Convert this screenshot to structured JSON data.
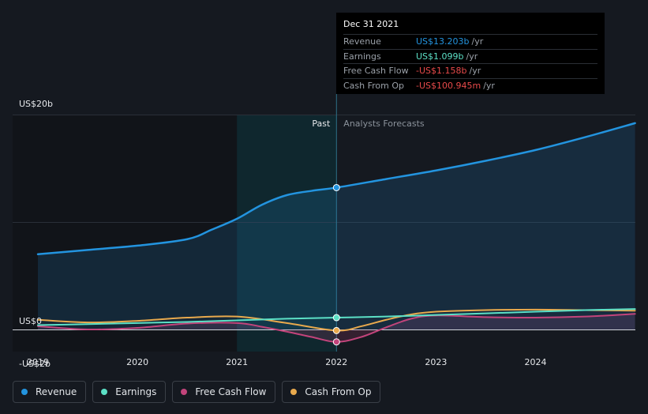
{
  "chart_data": {
    "type": "line",
    "title": "",
    "xlabel": "",
    "ylabel": "",
    "y_axis_labels": [
      {
        "label": "US$20b",
        "value": 20
      },
      {
        "label": "US$0",
        "value": 0
      },
      {
        "label": "-US$2b",
        "value": -2
      }
    ],
    "x_ticks": [
      {
        "label": "2019",
        "value": 2019.0
      },
      {
        "label": "2020",
        "value": 2020.0
      },
      {
        "label": "2021",
        "value": 2021.0
      },
      {
        "label": "2022",
        "value": 2022.0
      },
      {
        "label": "2023",
        "value": 2023.0
      },
      {
        "label": "2024",
        "value": 2024.0
      }
    ],
    "xlim": [
      2018.9,
      2025.0
    ],
    "ylim": [
      -2.2,
      20.5
    ],
    "past_label": "Past",
    "forecast_label": "Analysts Forecasts",
    "divider_x": 2022.0,
    "highlight_range": [
      2021.0,
      2022.0
    ],
    "series": [
      {
        "name": "Revenue",
        "color": "#2394df",
        "filled": true,
        "points": [
          [
            2019.0,
            7.0
          ],
          [
            2019.5,
            7.4
          ],
          [
            2020.0,
            7.8
          ],
          [
            2020.5,
            8.4
          ],
          [
            2020.75,
            9.3
          ],
          [
            2021.0,
            10.3
          ],
          [
            2021.25,
            11.6
          ],
          [
            2021.5,
            12.5
          ],
          [
            2021.75,
            12.9
          ],
          [
            2022.0,
            13.203
          ],
          [
            2022.5,
            14.0
          ],
          [
            2023.0,
            14.8
          ],
          [
            2023.5,
            15.7
          ],
          [
            2024.0,
            16.7
          ],
          [
            2024.5,
            17.9
          ],
          [
            2025.0,
            19.2
          ]
        ]
      },
      {
        "name": "Earnings",
        "color": "#5ce0c6",
        "filled": false,
        "points": [
          [
            2019.0,
            0.4
          ],
          [
            2019.5,
            0.5
          ],
          [
            2020.0,
            0.6
          ],
          [
            2020.5,
            0.7
          ],
          [
            2021.0,
            0.85
          ],
          [
            2021.5,
            1.0
          ],
          [
            2022.0,
            1.099
          ],
          [
            2022.5,
            1.2
          ],
          [
            2023.0,
            1.35
          ],
          [
            2023.5,
            1.5
          ],
          [
            2024.0,
            1.65
          ],
          [
            2024.5,
            1.8
          ],
          [
            2025.0,
            1.9
          ]
        ]
      },
      {
        "name": "Free Cash Flow",
        "color": "#c2447b",
        "filled": true,
        "points": [
          [
            2019.0,
            0.3
          ],
          [
            2019.5,
            0.0
          ],
          [
            2020.0,
            0.15
          ],
          [
            2020.5,
            0.55
          ],
          [
            2021.0,
            0.6
          ],
          [
            2021.25,
            0.25
          ],
          [
            2021.5,
            -0.2
          ],
          [
            2021.75,
            -0.7
          ],
          [
            2022.0,
            -1.158
          ],
          [
            2022.25,
            -0.7
          ],
          [
            2022.5,
            0.2
          ],
          [
            2022.75,
            1.0
          ],
          [
            2023.0,
            1.3
          ],
          [
            2023.5,
            1.15
          ],
          [
            2024.0,
            1.1
          ],
          [
            2024.5,
            1.2
          ],
          [
            2025.0,
            1.45
          ]
        ]
      },
      {
        "name": "Cash From Op",
        "color": "#e8a94d",
        "filled": false,
        "points": [
          [
            2019.0,
            0.9
          ],
          [
            2019.5,
            0.65
          ],
          [
            2020.0,
            0.8
          ],
          [
            2020.5,
            1.1
          ],
          [
            2021.0,
            1.2
          ],
          [
            2021.5,
            0.6
          ],
          [
            2022.0,
            -0.101
          ],
          [
            2022.25,
            0.3
          ],
          [
            2022.5,
            0.9
          ],
          [
            2022.75,
            1.4
          ],
          [
            2023.0,
            1.65
          ],
          [
            2023.5,
            1.8
          ],
          [
            2024.0,
            1.85
          ],
          [
            2024.5,
            1.8
          ],
          [
            2025.0,
            1.75
          ]
        ]
      }
    ],
    "tooltip": {
      "date": "Dec 31 2021",
      "rows": [
        {
          "name": "Revenue",
          "value": "US$13.203b",
          "unit": "/yr",
          "color": "#2394df"
        },
        {
          "name": "Earnings",
          "value": "US$1.099b",
          "unit": "/yr",
          "color": "#5ce0c6"
        },
        {
          "name": "Free Cash Flow",
          "value": "-US$1.158b",
          "unit": "/yr",
          "color": "#e84a4a"
        },
        {
          "name": "Cash From Op",
          "value": "-US$100.945m",
          "unit": "/yr",
          "color": "#e84a4a"
        }
      ]
    }
  },
  "legend": [
    {
      "label": "Revenue",
      "color": "#2394df"
    },
    {
      "label": "Earnings",
      "color": "#5ce0c6"
    },
    {
      "label": "Free Cash Flow",
      "color": "#c2447b"
    },
    {
      "label": "Cash From Op",
      "color": "#e8a94d"
    }
  ]
}
